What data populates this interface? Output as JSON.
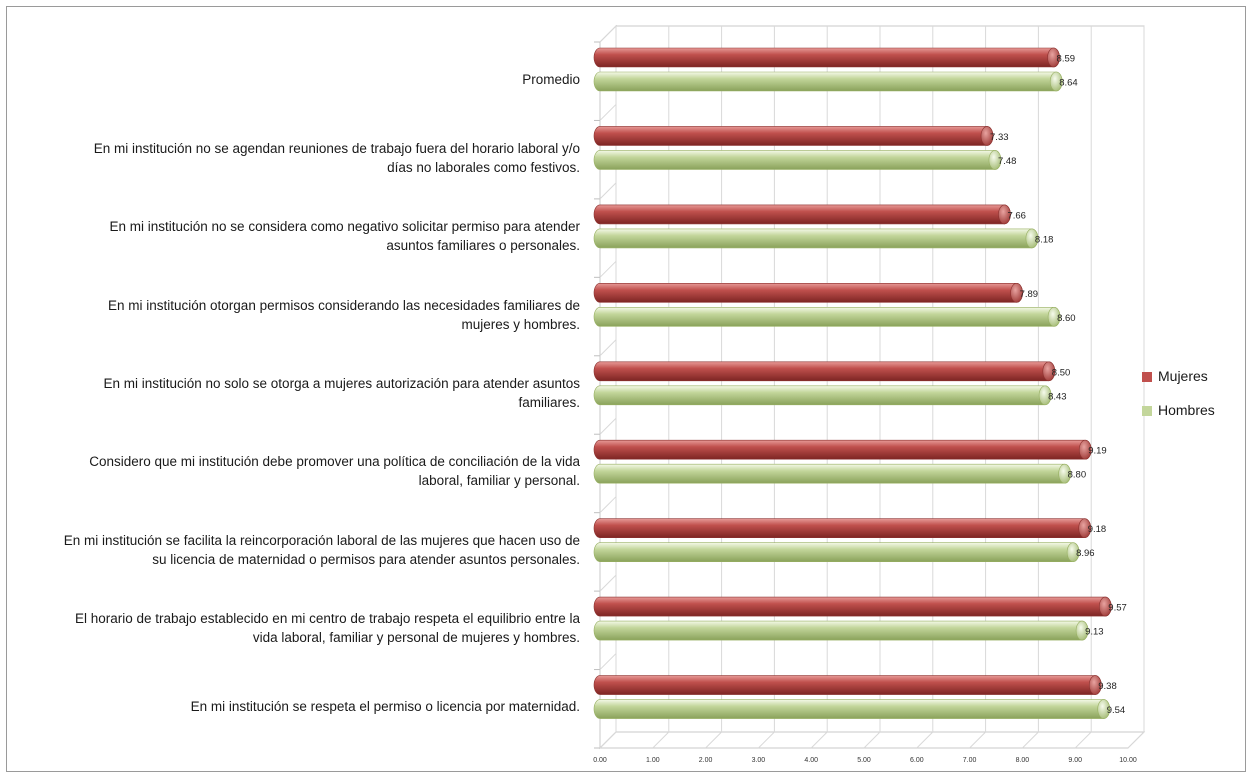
{
  "chart_data": {
    "type": "bar",
    "orientation": "horizontal",
    "categories": [
      "Promedio",
      "En mi institución no se agendan reuniones de trabajo fuera del horario laboral y/o días no laborales como festivos.",
      "En mi institución no se considera como negativo solicitar permiso para atender asuntos familiares o personales.",
      "En mi institución otorgan permisos considerando las necesidades familiares de mujeres y hombres.",
      "En mi institución no solo se otorga a mujeres autorización para atender asuntos familiares.",
      "Considero que mi institución debe promover una política de conciliación de la vida laboral, familiar y personal.",
      "En mi institución se facilita la reincorporación laboral de las mujeres que hacen uso de su licencia de maternidad o permisos para atender asuntos personales.",
      "El horario de trabajo establecido en mi centro de trabajo respeta el equilibrio entre la vida laboral, familiar y personal de mujeres y hombres.",
      "En mi institución se respeta el permiso o licencia por maternidad."
    ],
    "category_lines": [
      [
        "Promedio"
      ],
      [
        "En mi institución no se agendan reuniones de trabajo fuera del horario laboral y/o",
        "días no laborales como festivos."
      ],
      [
        "En mi institución no se considera como negativo solicitar permiso para atender",
        "asuntos familiares o personales."
      ],
      [
        "En mi institución otorgan permisos considerando las necesidades familiares de",
        "mujeres y hombres."
      ],
      [
        "En mi institución no solo se otorga a mujeres autorización para atender asuntos",
        "familiares."
      ],
      [
        "Considero que mi institución debe promover una política de conciliación de la vida",
        "laboral, familiar y personal."
      ],
      [
        "En mi institución se facilita la reincorporación laboral de las mujeres que hacen uso de",
        "su licencia de maternidad o permisos para atender asuntos personales."
      ],
      [
        "El horario de trabajo establecido en mi centro de trabajo respeta el equilibrio entre la",
        "vida laboral, familiar y personal de mujeres y hombres."
      ],
      [
        "En mi institución se respeta el permiso o licencia por maternidad."
      ]
    ],
    "series": [
      {
        "name": "Mujeres",
        "color": "#c0504d",
        "values": [
          8.59,
          7.33,
          7.66,
          7.89,
          8.5,
          9.19,
          9.18,
          9.57,
          9.38
        ],
        "labels": [
          "8.59",
          "7.33",
          "7.66",
          "7.89",
          "8.50",
          "9.19",
          "9.18",
          "9.57",
          "9.38"
        ]
      },
      {
        "name": "Hombres",
        "color": "#c3d69b",
        "values": [
          8.64,
          7.48,
          8.18,
          8.6,
          8.43,
          8.8,
          8.96,
          9.13,
          9.54
        ],
        "labels": [
          "8.64",
          "7.48",
          "8.18",
          "8.60",
          "8.43",
          "8.80",
          "8.96",
          "9.13",
          "9.54"
        ]
      }
    ],
    "xlim": [
      0,
      10
    ],
    "xticks": [
      "0.00",
      "1.00",
      "2.00",
      "3.00",
      "4.00",
      "5.00",
      "6.00",
      "7.00",
      "8.00",
      "9.00",
      "10.00"
    ],
    "grid": true,
    "legend_position": "right",
    "style": "3d-cylinder"
  }
}
